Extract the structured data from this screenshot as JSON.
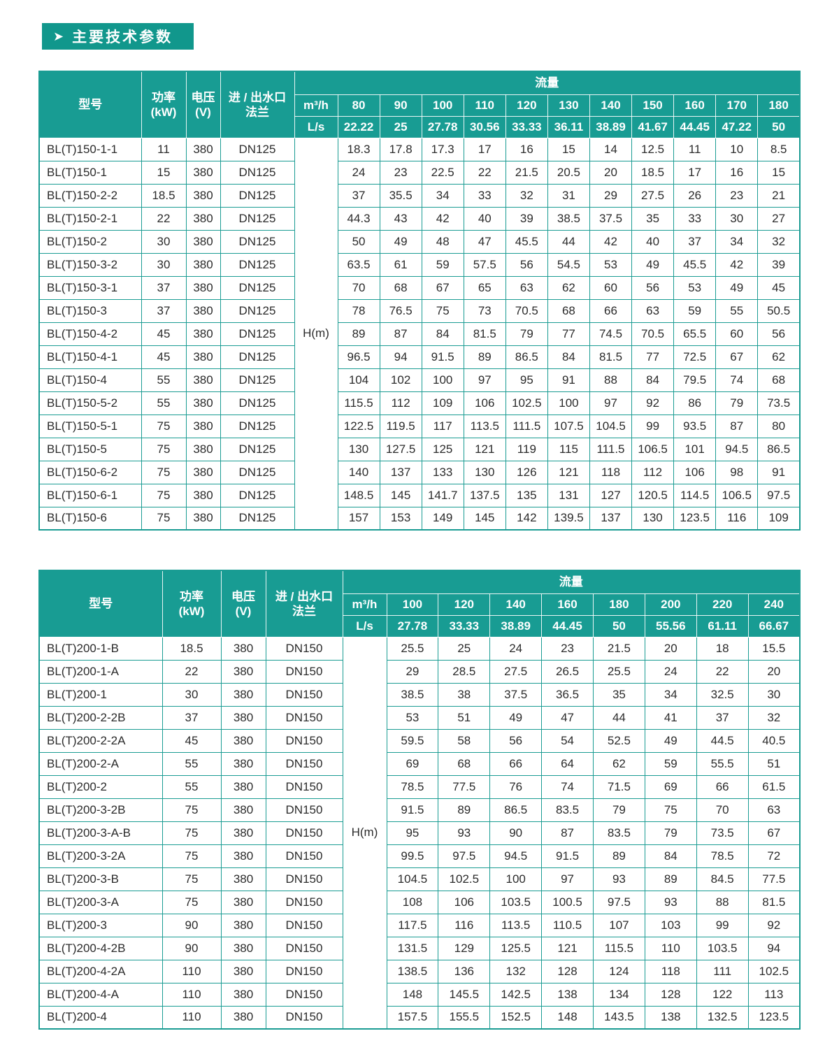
{
  "page": {
    "title": "主要技术参数",
    "arrow_icon": "➤"
  },
  "colors": {
    "teal_header": "#189c93",
    "teal_title_bar": "#11978c",
    "teal_border": "#1a9c93",
    "header_text": "#ffffff",
    "body_text": "#2b2b2b"
  },
  "tables": [
    {
      "series": "BL(T)150",
      "header": {
        "model": "型号",
        "power": "功率\n(kW)",
        "voltage": "电压\n(V)",
        "flange": "进 / 出水口\n法兰",
        "flow": "流量",
        "m3h_label": "m³/h",
        "ls_label": "L/s",
        "head_unit": "H(m)",
        "m3h_values": [
          "80",
          "90",
          "100",
          "110",
          "120",
          "130",
          "140",
          "150",
          "160",
          "170",
          "180"
        ],
        "ls_values": [
          "22.22",
          "25",
          "27.78",
          "30.56",
          "33.33",
          "36.11",
          "38.89",
          "41.67",
          "44.45",
          "47.22",
          "50"
        ]
      },
      "rows": [
        {
          "model": "BL(T)150-1-1",
          "power": "11",
          "voltage": "380",
          "flange": "DN125",
          "values": [
            "18.3",
            "17.8",
            "17.3",
            "17",
            "16",
            "15",
            "14",
            "12.5",
            "11",
            "10",
            "8.5"
          ]
        },
        {
          "model": "BL(T)150-1",
          "power": "15",
          "voltage": "380",
          "flange": "DN125",
          "values": [
            "24",
            "23",
            "22.5",
            "22",
            "21.5",
            "20.5",
            "20",
            "18.5",
            "17",
            "16",
            "15"
          ]
        },
        {
          "model": "BL(T)150-2-2",
          "power": "18.5",
          "voltage": "380",
          "flange": "DN125",
          "values": [
            "37",
            "35.5",
            "34",
            "33",
            "32",
            "31",
            "29",
            "27.5",
            "26",
            "23",
            "21"
          ]
        },
        {
          "model": "BL(T)150-2-1",
          "power": "22",
          "voltage": "380",
          "flange": "DN125",
          "values": [
            "44.3",
            "43",
            "42",
            "40",
            "39",
            "38.5",
            "37.5",
            "35",
            "33",
            "30",
            "27"
          ]
        },
        {
          "model": "BL(T)150-2",
          "power": "30",
          "voltage": "380",
          "flange": "DN125",
          "values": [
            "50",
            "49",
            "48",
            "47",
            "45.5",
            "44",
            "42",
            "40",
            "37",
            "34",
            "32"
          ]
        },
        {
          "model": "BL(T)150-3-2",
          "power": "30",
          "voltage": "380",
          "flange": "DN125",
          "values": [
            "63.5",
            "61",
            "59",
            "57.5",
            "56",
            "54.5",
            "53",
            "49",
            "45.5",
            "42",
            "39"
          ]
        },
        {
          "model": "BL(T)150-3-1",
          "power": "37",
          "voltage": "380",
          "flange": "DN125",
          "values": [
            "70",
            "68",
            "67",
            "65",
            "63",
            "62",
            "60",
            "56",
            "53",
            "49",
            "45"
          ]
        },
        {
          "model": "BL(T)150-3",
          "power": "37",
          "voltage": "380",
          "flange": "DN125",
          "values": [
            "78",
            "76.5",
            "75",
            "73",
            "70.5",
            "68",
            "66",
            "63",
            "59",
            "55",
            "50.5"
          ]
        },
        {
          "model": "BL(T)150-4-2",
          "power": "45",
          "voltage": "380",
          "flange": "DN125",
          "values": [
            "89",
            "87",
            "84",
            "81.5",
            "79",
            "77",
            "74.5",
            "70.5",
            "65.5",
            "60",
            "56"
          ]
        },
        {
          "model": "BL(T)150-4-1",
          "power": "45",
          "voltage": "380",
          "flange": "DN125",
          "values": [
            "96.5",
            "94",
            "91.5",
            "89",
            "86.5",
            "84",
            "81.5",
            "77",
            "72.5",
            "67",
            "62"
          ]
        },
        {
          "model": "BL(T)150-4",
          "power": "55",
          "voltage": "380",
          "flange": "DN125",
          "values": [
            "104",
            "102",
            "100",
            "97",
            "95",
            "91",
            "88",
            "84",
            "79.5",
            "74",
            "68"
          ]
        },
        {
          "model": "BL(T)150-5-2",
          "power": "55",
          "voltage": "380",
          "flange": "DN125",
          "values": [
            "115.5",
            "112",
            "109",
            "106",
            "102.5",
            "100",
            "97",
            "92",
            "86",
            "79",
            "73.5"
          ]
        },
        {
          "model": "BL(T)150-5-1",
          "power": "75",
          "voltage": "380",
          "flange": "DN125",
          "values": [
            "122.5",
            "119.5",
            "117",
            "113.5",
            "111.5",
            "107.5",
            "104.5",
            "99",
            "93.5",
            "87",
            "80"
          ]
        },
        {
          "model": "BL(T)150-5",
          "power": "75",
          "voltage": "380",
          "flange": "DN125",
          "values": [
            "130",
            "127.5",
            "125",
            "121",
            "119",
            "115",
            "111.5",
            "106.5",
            "101",
            "94.5",
            "86.5"
          ]
        },
        {
          "model": "BL(T)150-6-2",
          "power": "75",
          "voltage": "380",
          "flange": "DN125",
          "values": [
            "140",
            "137",
            "133",
            "130",
            "126",
            "121",
            "118",
            "112",
            "106",
            "98",
            "91"
          ]
        },
        {
          "model": "BL(T)150-6-1",
          "power": "75",
          "voltage": "380",
          "flange": "DN125",
          "values": [
            "148.5",
            "145",
            "141.7",
            "137.5",
            "135",
            "131",
            "127",
            "120.5",
            "114.5",
            "106.5",
            "97.5"
          ]
        },
        {
          "model": "BL(T)150-6",
          "power": "75",
          "voltage": "380",
          "flange": "DN125",
          "values": [
            "157",
            "153",
            "149",
            "145",
            "142",
            "139.5",
            "137",
            "130",
            "123.5",
            "116",
            "109"
          ]
        }
      ]
    },
    {
      "series": "BL(T)200",
      "header": {
        "model": "型号",
        "power": "功率\n(kW)",
        "voltage": "电压\n(V)",
        "flange": "进 / 出水口\n法兰",
        "flow": "流量",
        "m3h_label": "m³/h",
        "ls_label": "L/s",
        "head_unit": "H(m)",
        "m3h_values": [
          "100",
          "120",
          "140",
          "160",
          "180",
          "200",
          "220",
          "240"
        ],
        "ls_values": [
          "27.78",
          "33.33",
          "38.89",
          "44.45",
          "50",
          "55.56",
          "61.11",
          "66.67"
        ]
      },
      "rows": [
        {
          "model": "BL(T)200-1-B",
          "power": "18.5",
          "voltage": "380",
          "flange": "DN150",
          "values": [
            "25.5",
            "25",
            "24",
            "23",
            "21.5",
            "20",
            "18",
            "15.5"
          ]
        },
        {
          "model": "BL(T)200-1-A",
          "power": "22",
          "voltage": "380",
          "flange": "DN150",
          "values": [
            "29",
            "28.5",
            "27.5",
            "26.5",
            "25.5",
            "24",
            "22",
            "20"
          ]
        },
        {
          "model": "BL(T)200-1",
          "power": "30",
          "voltage": "380",
          "flange": "DN150",
          "values": [
            "38.5",
            "38",
            "37.5",
            "36.5",
            "35",
            "34",
            "32.5",
            "30"
          ]
        },
        {
          "model": "BL(T)200-2-2B",
          "power": "37",
          "voltage": "380",
          "flange": "DN150",
          "values": [
            "53",
            "51",
            "49",
            "47",
            "44",
            "41",
            "37",
            "32"
          ]
        },
        {
          "model": "BL(T)200-2-2A",
          "power": "45",
          "voltage": "380",
          "flange": "DN150",
          "values": [
            "59.5",
            "58",
            "56",
            "54",
            "52.5",
            "49",
            "44.5",
            "40.5"
          ]
        },
        {
          "model": "BL(T)200-2-A",
          "power": "55",
          "voltage": "380",
          "flange": "DN150",
          "values": [
            "69",
            "68",
            "66",
            "64",
            "62",
            "59",
            "55.5",
            "51"
          ]
        },
        {
          "model": "BL(T)200-2",
          "power": "55",
          "voltage": "380",
          "flange": "DN150",
          "values": [
            "78.5",
            "77.5",
            "76",
            "74",
            "71.5",
            "69",
            "66",
            "61.5"
          ]
        },
        {
          "model": "BL(T)200-3-2B",
          "power": "75",
          "voltage": "380",
          "flange": "DN150",
          "values": [
            "91.5",
            "89",
            "86.5",
            "83.5",
            "79",
            "75",
            "70",
            "63"
          ]
        },
        {
          "model": "BL(T)200-3-A-B",
          "power": "75",
          "voltage": "380",
          "flange": "DN150",
          "values": [
            "95",
            "93",
            "90",
            "87",
            "83.5",
            "79",
            "73.5",
            "67"
          ]
        },
        {
          "model": "BL(T)200-3-2A",
          "power": "75",
          "voltage": "380",
          "flange": "DN150",
          "values": [
            "99.5",
            "97.5",
            "94.5",
            "91.5",
            "89",
            "84",
            "78.5",
            "72"
          ]
        },
        {
          "model": "BL(T)200-3-B",
          "power": "75",
          "voltage": "380",
          "flange": "DN150",
          "values": [
            "104.5",
            "102.5",
            "100",
            "97",
            "93",
            "89",
            "84.5",
            "77.5"
          ]
        },
        {
          "model": "BL(T)200-3-A",
          "power": "75",
          "voltage": "380",
          "flange": "DN150",
          "values": [
            "108",
            "106",
            "103.5",
            "100.5",
            "97.5",
            "93",
            "88",
            "81.5"
          ]
        },
        {
          "model": "BL(T)200-3",
          "power": "90",
          "voltage": "380",
          "flange": "DN150",
          "values": [
            "117.5",
            "116",
            "113.5",
            "110.5",
            "107",
            "103",
            "99",
            "92"
          ]
        },
        {
          "model": "BL(T)200-4-2B",
          "power": "90",
          "voltage": "380",
          "flange": "DN150",
          "values": [
            "131.5",
            "129",
            "125.5",
            "121",
            "115.5",
            "110",
            "103.5",
            "94"
          ]
        },
        {
          "model": "BL(T)200-4-2A",
          "power": "110",
          "voltage": "380",
          "flange": "DN150",
          "values": [
            "138.5",
            "136",
            "132",
            "128",
            "124",
            "118",
            "111",
            "102.5"
          ]
        },
        {
          "model": "BL(T)200-4-A",
          "power": "110",
          "voltage": "380",
          "flange": "DN150",
          "values": [
            "148",
            "145.5",
            "142.5",
            "138",
            "134",
            "128",
            "122",
            "113"
          ]
        },
        {
          "model": "BL(T)200-4",
          "power": "110",
          "voltage": "380",
          "flange": "DN150",
          "values": [
            "157.5",
            "155.5",
            "152.5",
            "148",
            "143.5",
            "138",
            "132.5",
            "123.5"
          ]
        }
      ]
    }
  ]
}
